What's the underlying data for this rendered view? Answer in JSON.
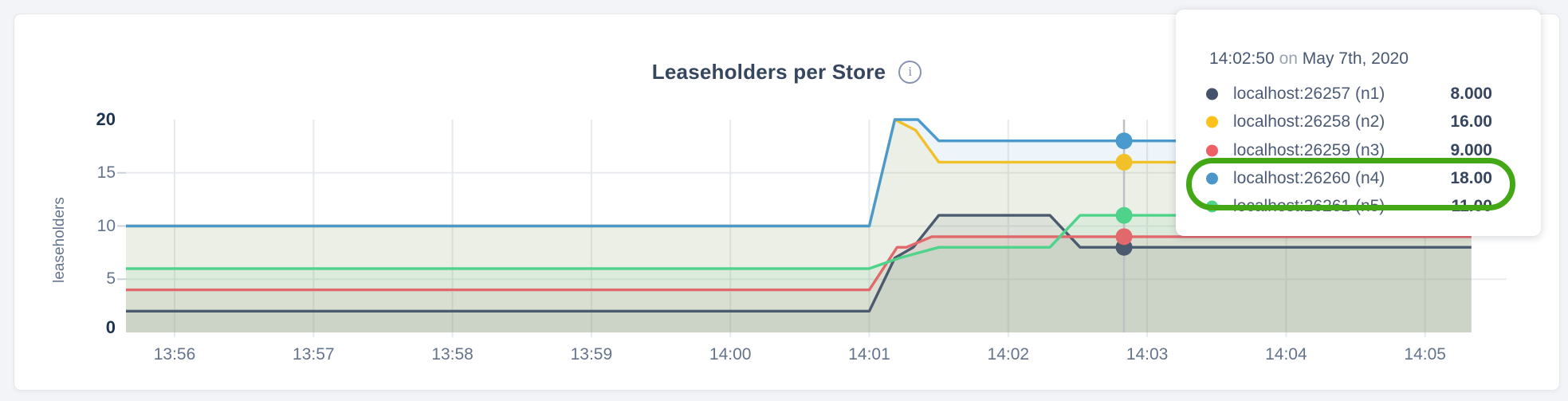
{
  "title": {
    "text": "Leaseholders per Store",
    "info_icon_glyph": "i"
  },
  "chart_data": {
    "type": "area",
    "title": "Leaseholders per Store",
    "ylabel": "leaseholders",
    "ylim": [
      0,
      20
    ],
    "grid": true,
    "x_ticks": [
      "13:56",
      "13:57",
      "13:58",
      "13:59",
      "14:00",
      "14:01",
      "14:02",
      "14:03",
      "14:04",
      "14:05"
    ],
    "y_ticks": [
      {
        "value": 0,
        "label": "0",
        "bold": true
      },
      {
        "value": 5,
        "label": "5",
        "bold": false
      },
      {
        "value": 10,
        "label": "10",
        "bold": false
      },
      {
        "value": 15,
        "label": "15",
        "bold": false
      },
      {
        "value": 20,
        "label": "20",
        "bold": true
      }
    ],
    "x_domain_start": "13:55:39",
    "x_domain_end": "14:05:20",
    "series": [
      {
        "name": "localhost:26257 (n1)",
        "color": "#4b5a6e",
        "points": [
          [
            "13:55:39",
            2
          ],
          [
            "14:01:00",
            2
          ],
          [
            "14:01:11",
            7
          ],
          [
            "14:01:19",
            8
          ],
          [
            "14:01:30",
            11
          ],
          [
            "14:02:18",
            11
          ],
          [
            "14:02:31",
            8
          ],
          [
            "14:05:20",
            8
          ]
        ]
      },
      {
        "name": "localhost:26258 (n2)",
        "color": "#f2c129",
        "points": [
          [
            "13:55:39",
            10
          ],
          [
            "14:01:00",
            10
          ],
          [
            "14:01:11",
            20
          ],
          [
            "14:01:20",
            19
          ],
          [
            "14:01:30",
            16
          ],
          [
            "14:05:20",
            16
          ]
        ]
      },
      {
        "name": "localhost:26259 (n3)",
        "color": "#e2696b",
        "points": [
          [
            "13:55:39",
            4
          ],
          [
            "14:01:00",
            4
          ],
          [
            "14:01:12",
            8
          ],
          [
            "14:01:16",
            8
          ],
          [
            "14:01:27",
            9
          ],
          [
            "14:05:20",
            9
          ]
        ]
      },
      {
        "name": "localhost:26260 (n4)",
        "color": "#4a9ace",
        "points": [
          [
            "13:55:39",
            10
          ],
          [
            "14:01:00",
            10
          ],
          [
            "14:01:11",
            20
          ],
          [
            "14:01:21",
            20
          ],
          [
            "14:01:30",
            18
          ],
          [
            "14:05:20",
            18
          ]
        ]
      },
      {
        "name": "localhost:26261 (n5)",
        "color": "#4fd28a",
        "points": [
          [
            "13:55:39",
            6
          ],
          [
            "14:01:00",
            6
          ],
          [
            "14:01:13",
            7
          ],
          [
            "14:01:30",
            8
          ],
          [
            "14:02:18",
            8
          ],
          [
            "14:02:31",
            11
          ],
          [
            "14:05:20",
            11
          ]
        ]
      }
    ],
    "hover": {
      "time": "14:02:50",
      "values": [
        8,
        16,
        9,
        18,
        11
      ]
    }
  },
  "tooltip": {
    "time": "14:02:50",
    "conjunction": "on",
    "date": "May 7th, 2020",
    "rows": [
      {
        "label": "localhost:26257 (n1)",
        "value": "8.000",
        "color": "#44536b"
      },
      {
        "label": "localhost:26258 (n2)",
        "value": "16.00",
        "color": "#fbc21d"
      },
      {
        "label": "localhost:26259 (n3)",
        "value": "9.000",
        "color": "#ed6066"
      },
      {
        "label": "localhost:26260 (n4)",
        "value": "18.00",
        "color": "#4d96cc"
      },
      {
        "label": "localhost:26261 (n5)",
        "value": "11.00",
        "color": "#4ed389"
      }
    ],
    "highlight": {
      "first_row": 3,
      "last_row": 4,
      "color": "#43a716"
    }
  }
}
